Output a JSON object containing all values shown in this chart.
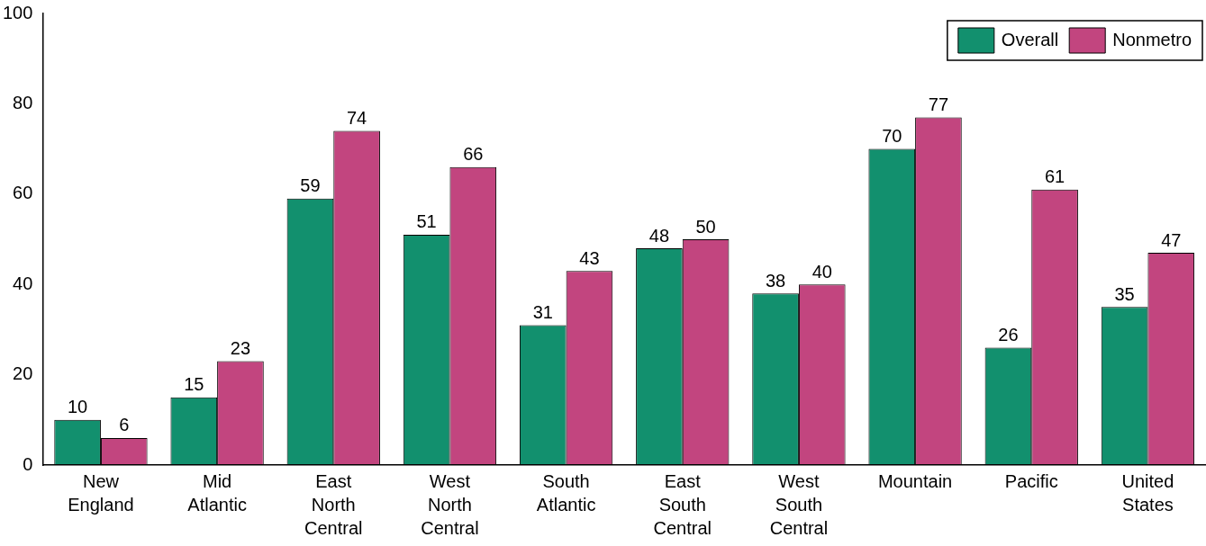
{
  "chart_data": {
    "type": "bar",
    "categories": [
      "New England",
      "Mid Atlantic",
      "East North Central",
      "West North Central",
      "South Atlantic",
      "East South Central",
      "West South Central",
      "Mountain",
      "Pacific",
      "United States"
    ],
    "series": [
      {
        "name": "Overall",
        "color": "#12906e",
        "values": [
          10,
          15,
          59,
          51,
          31,
          48,
          38,
          70,
          26,
          35
        ]
      },
      {
        "name": "Nonmetro",
        "color": "#c2457f",
        "values": [
          6,
          23,
          74,
          66,
          43,
          50,
          40,
          77,
          61,
          47
        ]
      }
    ],
    "ylim": [
      0,
      100
    ],
    "yticks": [
      0,
      20,
      40,
      60,
      80,
      100
    ],
    "grid": false,
    "legend": "top right",
    "data_labels": true
  }
}
